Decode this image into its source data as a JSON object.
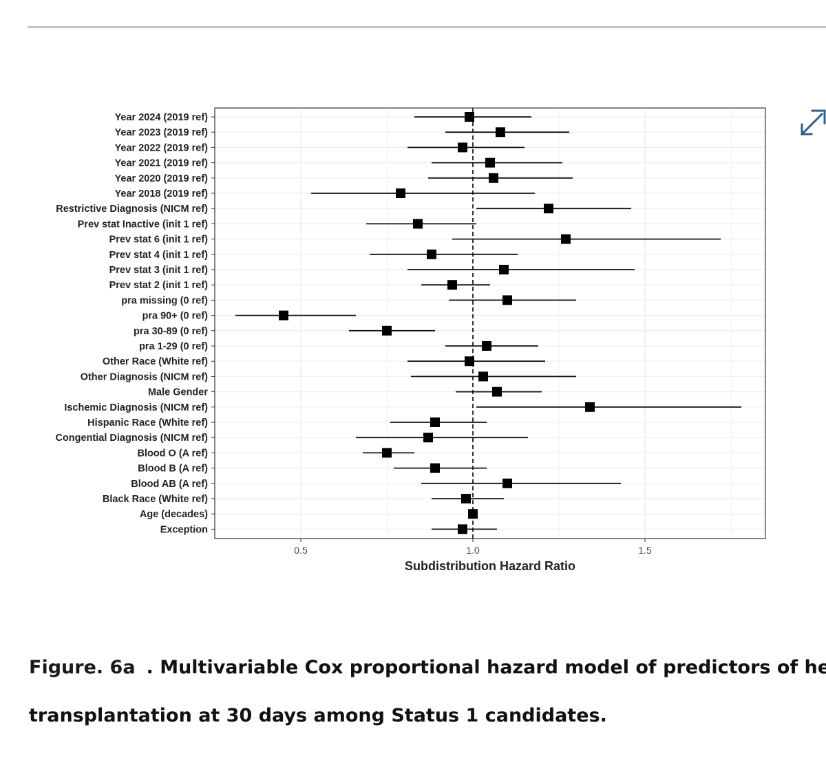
{
  "icons": {
    "expand": "expand-arrows-icon"
  },
  "colors": {
    "icon": "#2c5f8a",
    "rule": "#c4c4c4",
    "grid": "#ebebeb",
    "panel_border": "#333333",
    "marker": "#000000"
  },
  "chart_data": {
    "type": "forest",
    "title": "",
    "xlabel": "Subdistribution Hazard Ratio",
    "ylabel": "",
    "xlim": [
      0.25,
      1.85
    ],
    "xticks": [
      0.5,
      1.0,
      1.5
    ],
    "xtick_labels": [
      "0.5",
      "1.0",
      "1.5"
    ],
    "reference_line": 1.0,
    "grid": true,
    "rows": [
      {
        "label": "Year 2024 (2019 ref)",
        "estimate": 0.99,
        "lower": 0.83,
        "upper": 1.17
      },
      {
        "label": "Year 2023 (2019 ref)",
        "estimate": 1.08,
        "lower": 0.92,
        "upper": 1.28
      },
      {
        "label": "Year 2022 (2019 ref)",
        "estimate": 0.97,
        "lower": 0.81,
        "upper": 1.15
      },
      {
        "label": "Year 2021 (2019 ref)",
        "estimate": 1.05,
        "lower": 0.88,
        "upper": 1.26
      },
      {
        "label": "Year 2020 (2019 ref)",
        "estimate": 1.06,
        "lower": 0.87,
        "upper": 1.29
      },
      {
        "label": "Year 2018 (2019 ref)",
        "estimate": 0.79,
        "lower": 0.53,
        "upper": 1.18
      },
      {
        "label": "Restrictive Diagnosis (NICM ref)",
        "estimate": 1.22,
        "lower": 1.01,
        "upper": 1.46
      },
      {
        "label": "Prev stat Inactive (init 1 ref)",
        "estimate": 0.84,
        "lower": 0.69,
        "upper": 1.01
      },
      {
        "label": "Prev stat 6 (init 1 ref)",
        "estimate": 1.27,
        "lower": 0.94,
        "upper": 1.72
      },
      {
        "label": "Prev stat 4 (init 1 ref)",
        "estimate": 0.88,
        "lower": 0.7,
        "upper": 1.13
      },
      {
        "label": "Prev stat 3 (init 1 ref)",
        "estimate": 1.09,
        "lower": 0.81,
        "upper": 1.47
      },
      {
        "label": "Prev stat 2 (init 1 ref)",
        "estimate": 0.94,
        "lower": 0.85,
        "upper": 1.05
      },
      {
        "label": "pra missing (0 ref)",
        "estimate": 1.1,
        "lower": 0.93,
        "upper": 1.3
      },
      {
        "label": "pra 90+ (0 ref)",
        "estimate": 0.45,
        "lower": 0.31,
        "upper": 0.66
      },
      {
        "label": "pra 30-89 (0 ref)",
        "estimate": 0.75,
        "lower": 0.64,
        "upper": 0.89
      },
      {
        "label": "pra 1-29 (0 ref)",
        "estimate": 1.04,
        "lower": 0.92,
        "upper": 1.19
      },
      {
        "label": "Other Race (White ref)",
        "estimate": 0.99,
        "lower": 0.81,
        "upper": 1.21
      },
      {
        "label": "Other Diagnosis (NICM ref)",
        "estimate": 1.03,
        "lower": 0.82,
        "upper": 1.3
      },
      {
        "label": "Male Gender",
        "estimate": 1.07,
        "lower": 0.95,
        "upper": 1.2
      },
      {
        "label": "Ischemic Diagnosis (NICM ref)",
        "estimate": 1.34,
        "lower": 1.01,
        "upper": 1.78
      },
      {
        "label": "Hispanic Race (White ref)",
        "estimate": 0.89,
        "lower": 0.76,
        "upper": 1.04
      },
      {
        "label": "Congential Diagnosis (NICM ref)",
        "estimate": 0.87,
        "lower": 0.66,
        "upper": 1.16
      },
      {
        "label": "Blood O (A ref)",
        "estimate": 0.75,
        "lower": 0.68,
        "upper": 0.83
      },
      {
        "label": "Blood B (A ref)",
        "estimate": 0.89,
        "lower": 0.77,
        "upper": 1.04
      },
      {
        "label": "Blood AB (A ref)",
        "estimate": 1.1,
        "lower": 0.85,
        "upper": 1.43
      },
      {
        "label": "Black Race (White ref)",
        "estimate": 0.98,
        "lower": 0.88,
        "upper": 1.09
      },
      {
        "label": "Age (decades)",
        "estimate": 1.0,
        "lower": 1.0,
        "upper": 1.0
      },
      {
        "label": "Exception",
        "estimate": 0.97,
        "lower": 0.88,
        "upper": 1.07
      }
    ]
  },
  "caption": {
    "figure_label": "Figure. 6a",
    "line1": ". Multivariable Cox proportional hazard model of predictors of heart",
    "line2": "transplantation at 30 days among Status 1 candidates."
  }
}
